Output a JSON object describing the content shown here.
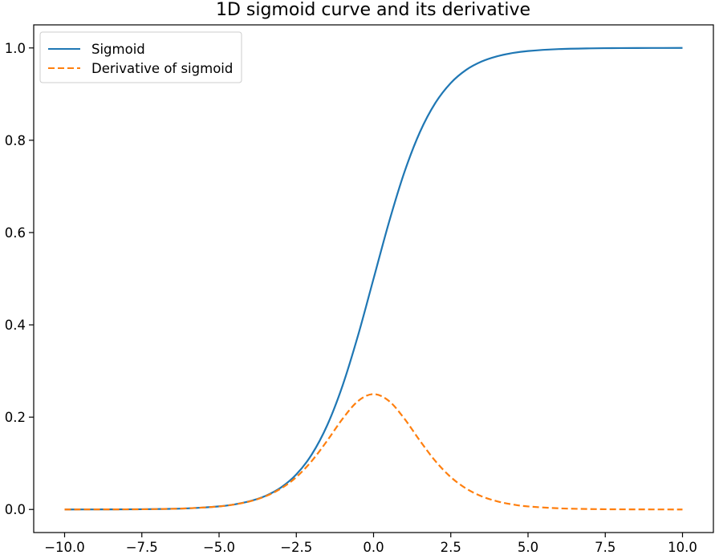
{
  "chart_data": {
    "type": "line",
    "title": "1D sigmoid curve and its derivative",
    "xlabel": "",
    "ylabel": "",
    "xlim": [
      -11.0,
      11.0
    ],
    "ylim": [
      -0.05,
      1.05
    ],
    "x_ticks": [
      -10.0,
      -7.5,
      -5.0,
      -2.5,
      0.0,
      2.5,
      5.0,
      7.5,
      10.0
    ],
    "x_tick_labels": [
      "−10.0",
      "−7.5",
      "−5.0",
      "−2.5",
      "0.0",
      "2.5",
      "5.0",
      "7.5",
      "10.0"
    ],
    "y_ticks": [
      0.0,
      0.2,
      0.4,
      0.6,
      0.8,
      1.0
    ],
    "y_tick_labels": [
      "0.0",
      "0.2",
      "0.4",
      "0.6",
      "0.8",
      "1.0"
    ],
    "grid": false,
    "legend_position": "top-left",
    "series": [
      {
        "name": "Sigmoid",
        "color": "#1f77b4",
        "style": "solid",
        "x": [
          -10,
          -9,
          -8,
          -7,
          -6,
          -5,
          -4.5,
          -4,
          -3.5,
          -3,
          -2.5,
          -2,
          -1.5,
          -1,
          -0.5,
          0,
          0.5,
          1,
          1.5,
          2,
          2.5,
          3,
          3.5,
          4,
          4.5,
          5,
          6,
          7,
          8,
          9,
          10
        ],
        "y": [
          0.0,
          0.0001,
          0.0003,
          0.0009,
          0.0025,
          0.0067,
          0.011,
          0.018,
          0.0293,
          0.0474,
          0.0759,
          0.1192,
          0.1824,
          0.2689,
          0.3775,
          0.5,
          0.6225,
          0.7311,
          0.8176,
          0.8808,
          0.9241,
          0.9526,
          0.9707,
          0.982,
          0.989,
          0.9933,
          0.9975,
          0.9991,
          0.9997,
          0.9999,
          1.0
        ]
      },
      {
        "name": "Derivative of sigmoid",
        "color": "#ff7f0e",
        "style": "dashed",
        "x": [
          -10,
          -9,
          -8,
          -7,
          -6,
          -5,
          -4.5,
          -4,
          -3.5,
          -3,
          -2.5,
          -2,
          -1.5,
          -1,
          -0.5,
          0,
          0.5,
          1,
          1.5,
          2,
          2.5,
          3,
          3.5,
          4,
          4.5,
          5,
          6,
          7,
          8,
          9,
          10
        ],
        "y": [
          0.0,
          0.0001,
          0.0003,
          0.0009,
          0.0025,
          0.0066,
          0.0109,
          0.0177,
          0.0285,
          0.0452,
          0.0701,
          0.105,
          0.1491,
          0.1966,
          0.235,
          0.25,
          0.235,
          0.1966,
          0.1491,
          0.105,
          0.0701,
          0.0452,
          0.0285,
          0.0177,
          0.0109,
          0.0066,
          0.0025,
          0.0009,
          0.0003,
          0.0001,
          0.0
        ]
      }
    ]
  }
}
